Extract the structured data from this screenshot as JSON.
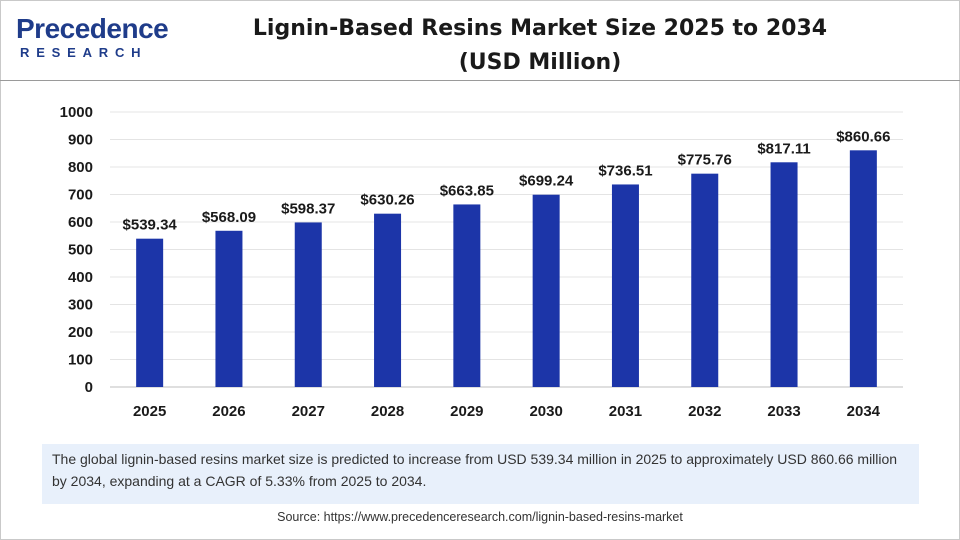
{
  "brand": {
    "name": "Precedence",
    "sub": "RESEARCH"
  },
  "chart_data": {
    "type": "bar",
    "title": "Lignin-Based Resins Market Size 2025 to 2034",
    "subtitle": "(USD Million)",
    "categories": [
      "2025",
      "2026",
      "2027",
      "2028",
      "2029",
      "2030",
      "2031",
      "2032",
      "2033",
      "2034"
    ],
    "values": [
      539.34,
      568.09,
      598.37,
      630.26,
      663.85,
      699.24,
      736.51,
      775.76,
      817.11,
      860.66
    ],
    "data_labels": [
      "$539.34",
      "$568.09",
      "$598.37",
      "$630.26",
      "$663.85",
      "$699.24",
      "$736.51",
      "$775.76",
      "$817.11",
      "$860.66"
    ],
    "xlabel": "",
    "ylabel": "",
    "ylim": [
      0,
      1000
    ],
    "yticks": [
      0,
      100,
      200,
      300,
      400,
      500,
      600,
      700,
      800,
      900,
      1000
    ],
    "grid": true,
    "bar_color": "#1c35a8"
  },
  "note": "The global lignin-based resins market size is predicted to increase from USD 539.34 million in 2025 to approximately USD 860.66 million by 2034, expanding at a CAGR of 5.33% from 2025 to 2034.",
  "source": "Source: https://www.precedenceresearch.com/lignin-based-resins-market"
}
